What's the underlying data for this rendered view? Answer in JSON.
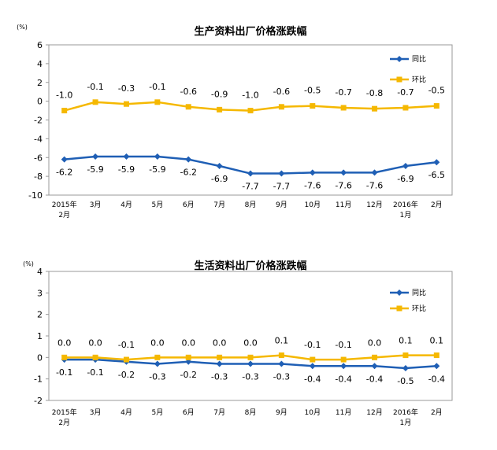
{
  "chart_data": [
    {
      "type": "line",
      "title": "生产资料出厂价格涨跌幅",
      "unit_label": "(%)",
      "categories": [
        "2015年\n2月",
        "3月",
        "4月",
        "5月",
        "6月",
        "7月",
        "8月",
        "9月",
        "10月",
        "11月",
        "12月",
        "2016年\n1月",
        "2月"
      ],
      "ylim": [
        -10,
        6
      ],
      "yticks": [
        -10,
        -8,
        -6,
        -4,
        -2,
        0,
        2,
        4,
        6
      ],
      "legend_position": "top-right",
      "series": [
        {
          "name": "同比",
          "color": "#1f5fb5",
          "marker": "diamond",
          "values": [
            -6.2,
            -5.9,
            -5.9,
            -5.9,
            -6.2,
            -6.9,
            -7.7,
            -7.7,
            -7.6,
            -7.6,
            -7.6,
            -6.9,
            -6.5
          ],
          "label_position": "below"
        },
        {
          "name": "环比",
          "color": "#f5b800",
          "marker": "square",
          "values": [
            -1.0,
            -0.1,
            -0.3,
            -0.1,
            -0.6,
            -0.9,
            -1.0,
            -0.6,
            -0.5,
            -0.7,
            -0.8,
            -0.7,
            -0.5
          ],
          "label_position": "above"
        }
      ]
    },
    {
      "type": "line",
      "title": "生活资料出厂价格涨跌幅",
      "unit_label": "(%)",
      "categories": [
        "2015年\n2月",
        "3月",
        "4月",
        "5月",
        "6月",
        "7月",
        "8月",
        "9月",
        "10月",
        "11月",
        "12月",
        "2016年\n1月",
        "2月"
      ],
      "ylim": [
        -2,
        4
      ],
      "yticks": [
        -2,
        -1,
        0,
        1,
        2,
        3,
        4
      ],
      "legend_position": "top-right",
      "series": [
        {
          "name": "同比",
          "color": "#1f5fb5",
          "marker": "diamond",
          "values": [
            -0.1,
            -0.1,
            -0.2,
            -0.3,
            -0.2,
            -0.3,
            -0.3,
            -0.3,
            -0.4,
            -0.4,
            -0.4,
            -0.5,
            -0.4
          ],
          "label_position": "below"
        },
        {
          "name": "环比",
          "color": "#f5b800",
          "marker": "square",
          "values": [
            0.0,
            0.0,
            -0.1,
            0.0,
            0.0,
            0.0,
            0.0,
            0.1,
            -0.1,
            -0.1,
            0.0,
            0.1,
            0.1
          ],
          "label_position": "above"
        }
      ]
    }
  ]
}
